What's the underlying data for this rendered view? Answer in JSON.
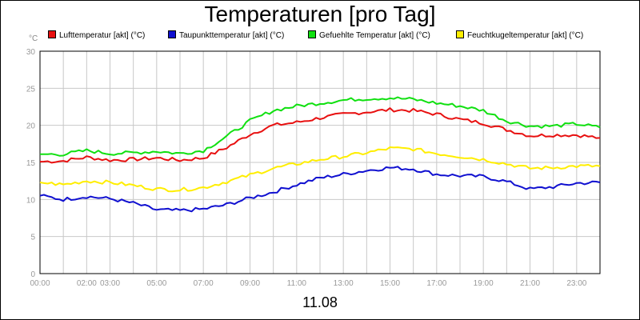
{
  "chart_data": {
    "type": "line",
    "title": "Temperaturen [pro Tag]",
    "ylabel": "°C",
    "xlabel": "11.08",
    "ylim": [
      0,
      30
    ],
    "xlim_hours": [
      0,
      24
    ],
    "yticks": [
      "0",
      "5",
      "10",
      "15",
      "20",
      "25",
      "30"
    ],
    "xticks": [
      {
        "label": "00:00",
        "hour": 0
      },
      {
        "label": "02:00",
        "hour": 2
      },
      {
        "label": "03:00",
        "hour": 3
      },
      {
        "label": "05:00",
        "hour": 5
      },
      {
        "label": "07:00",
        "hour": 7
      },
      {
        "label": "09:00",
        "hour": 9
      },
      {
        "label": "11:00",
        "hour": 11
      },
      {
        "label": "13:00",
        "hour": 13
      },
      {
        "label": "15:00",
        "hour": 15
      },
      {
        "label": "17:00",
        "hour": 17
      },
      {
        "label": "19:00",
        "hour": 19
      },
      {
        "label": "21:00",
        "hour": 21
      },
      {
        "label": "23:00",
        "hour": 23
      }
    ],
    "grid": true,
    "x_hours": [
      0,
      1,
      2,
      3,
      4,
      5,
      6,
      7,
      8,
      9,
      10,
      11,
      12,
      13,
      14,
      15,
      16,
      17,
      18,
      19,
      20,
      21,
      22,
      23,
      24
    ],
    "series": [
      {
        "name": "Lufttemperatur [akt] (°C)",
        "color": "#e81010",
        "values": [
          15.1,
          15.2,
          15.7,
          15.3,
          15.4,
          15.6,
          15.3,
          15.6,
          17.0,
          18.8,
          20.0,
          20.4,
          21.0,
          21.5,
          21.8,
          22.1,
          22.0,
          21.5,
          20.8,
          20.3,
          19.4,
          18.6,
          18.7,
          18.7,
          18.3
        ]
      },
      {
        "name": "Taupunkttemperatur [akt] (°C)",
        "color": "#1010d0",
        "values": [
          10.5,
          10.0,
          10.4,
          10.1,
          9.5,
          8.6,
          8.5,
          8.7,
          9.3,
          10.2,
          11.0,
          12.0,
          12.9,
          13.4,
          13.9,
          14.3,
          14.1,
          13.4,
          13.2,
          13.1,
          12.4,
          11.4,
          11.7,
          12.2,
          12.3
        ]
      },
      {
        "name": "Gefuehlte Temperatur [akt] (°C)",
        "color": "#10e010",
        "values": [
          16.1,
          16.1,
          16.6,
          16.2,
          16.3,
          16.5,
          16.2,
          16.6,
          18.5,
          20.6,
          22.0,
          22.6,
          23.0,
          23.4,
          23.6,
          23.7,
          23.5,
          23.0,
          22.6,
          22.0,
          20.6,
          19.9,
          19.9,
          20.2,
          19.7
        ]
      },
      {
        "name": "Feuchtkugeltemperatur [akt] (°C)",
        "color": "#ffee00",
        "values": [
          12.3,
          12.0,
          12.5,
          12.3,
          11.9,
          11.4,
          11.3,
          11.6,
          12.4,
          13.3,
          14.2,
          14.8,
          15.4,
          15.8,
          16.3,
          16.9,
          16.8,
          16.2,
          15.8,
          15.4,
          14.8,
          14.2,
          14.3,
          14.5,
          14.5
        ]
      }
    ]
  }
}
